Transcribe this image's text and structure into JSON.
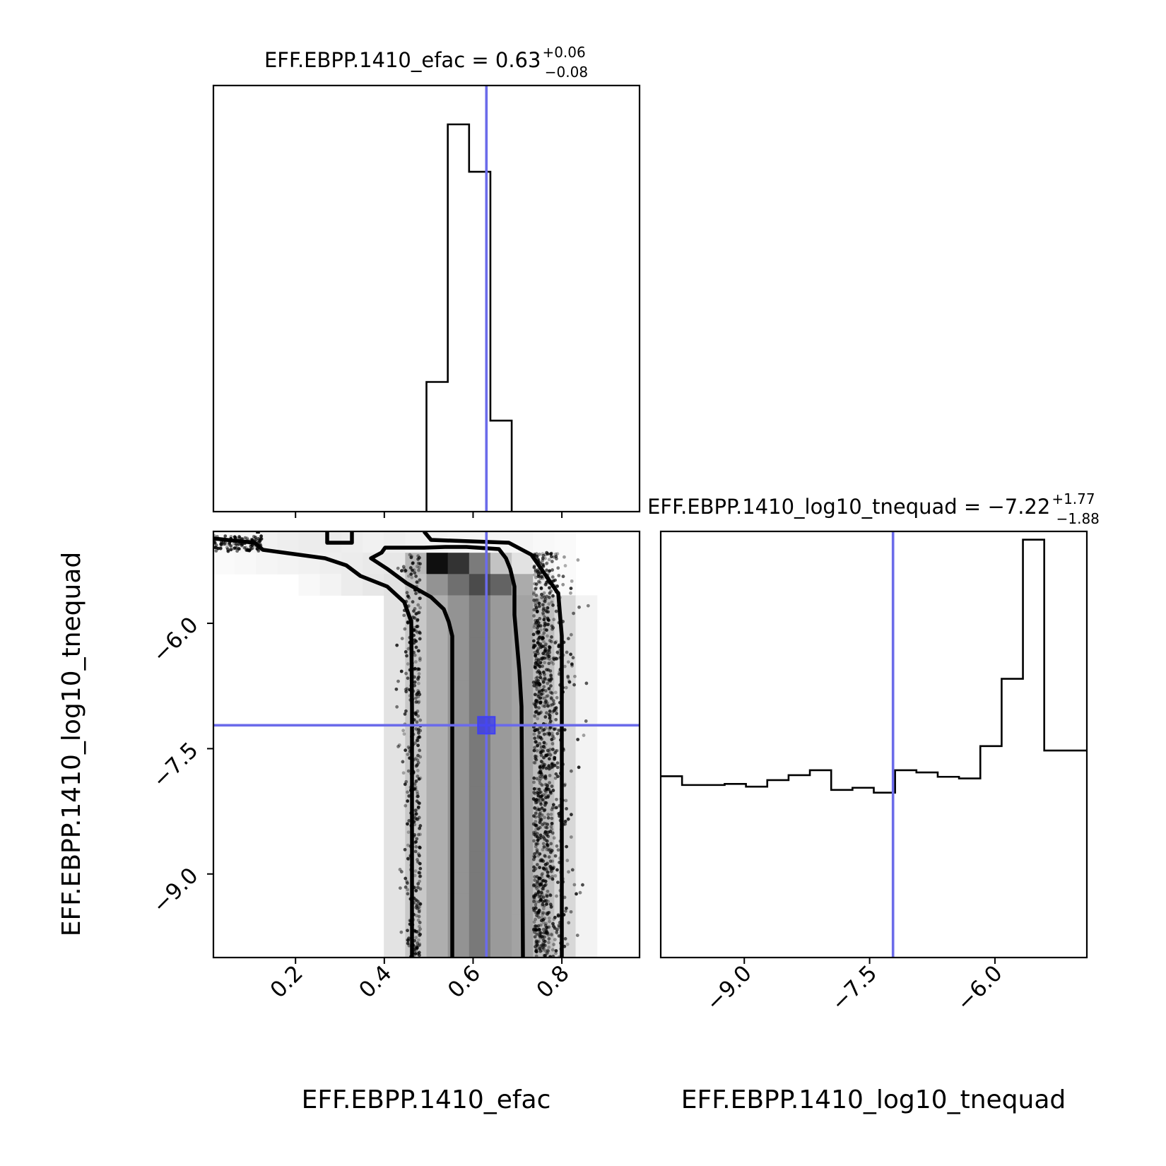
{
  "chart_data": {
    "type": "corner",
    "params": [
      "EFF.EBPP.1410_efac",
      "EFF.EBPP.1410_log10_tnequad"
    ],
    "truth": {
      "efac": 0.63,
      "log10_tnequad": -7.22,
      "color": "#0000ff"
    },
    "titles": {
      "efac": {
        "text": "EFF.EBPP.1410_efac = 0.63",
        "plus": "+0.06",
        "minus": "−0.08"
      },
      "tnequad": {
        "text": "EFF.EBPP.1410_log10_tnequad = −7.22",
        "plus": "+1.77",
        "minus": "−1.88"
      }
    },
    "xlabels": {
      "efac": "EFF.EBPP.1410_efac",
      "tnequad": "EFF.EBPP.1410_log10_tnequad"
    },
    "ylabel": "EFF.EBPP.1410_log10_tnequad",
    "efac_ticks": [
      {
        "v": 0.2,
        "label": "0.2"
      },
      {
        "v": 0.4,
        "label": "0.4"
      },
      {
        "v": 0.6,
        "label": "0.6"
      },
      {
        "v": 0.8,
        "label": "0.8"
      }
    ],
    "tnequad_ticks": [
      {
        "v": -9.0,
        "label": "−9.0"
      },
      {
        "v": -7.5,
        "label": "−7.5"
      },
      {
        "v": -6.0,
        "label": "−6.0"
      }
    ],
    "efac_range": [
      0.015,
      0.975
    ],
    "tnequad_range": [
      -10.0,
      -4.9
    ],
    "hist_efac": {
      "edges": [
        0.015,
        0.063,
        0.111,
        0.159,
        0.207,
        0.255,
        0.303,
        0.351,
        0.399,
        0.447,
        0.495,
        0.543,
        0.591,
        0.639,
        0.687,
        0.735,
        0.783,
        0.831,
        0.879,
        0.927,
        0.975
      ],
      "counts": [
        0.002,
        0.004,
        0.008,
        0.013,
        0.021,
        0.028,
        0.036,
        0.049,
        0.06,
        0.1,
        0.5,
        1.0,
        0.908,
        0.425,
        0.125,
        0.026,
        0.008,
        0.002,
        0.001,
        0.001
      ]
    },
    "hist_tnequad": {
      "edges": [
        -10.0,
        -9.745,
        -9.49,
        -9.235,
        -8.98,
        -8.725,
        -8.47,
        -8.215,
        -7.96,
        -7.705,
        -7.45,
        -7.195,
        -6.94,
        -6.685,
        -6.43,
        -6.175,
        -5.92,
        -5.665,
        -5.41,
        -5.155,
        -4.9
      ],
      "counts": [
        0.331,
        0.315,
        0.315,
        0.317,
        0.312,
        0.324,
        0.333,
        0.342,
        0.306,
        0.31,
        0.301,
        0.342,
        0.338,
        0.33,
        0.327,
        0.386,
        0.509,
        0.763,
        0.378,
        0.0
      ],
      "last_bin_visible_top": 0.378
    }
  }
}
